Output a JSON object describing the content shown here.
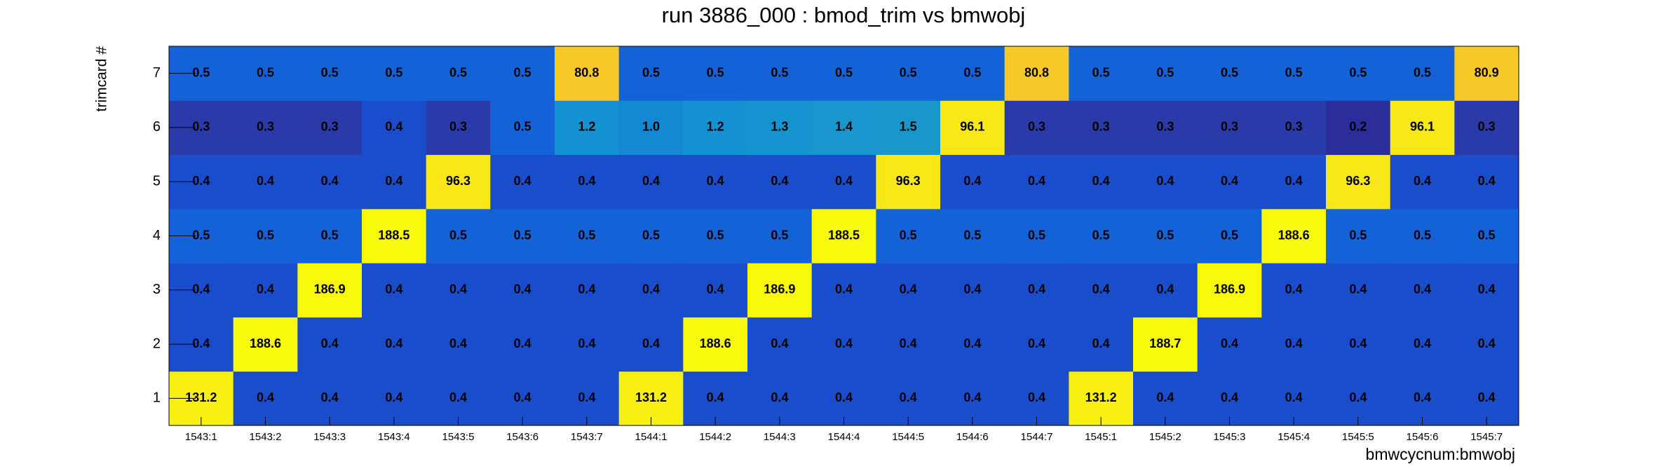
{
  "chart_data": {
    "type": "heatmap",
    "title": "run 3886_000 : bmod_trim vs bmwobj",
    "x_label": "bmwcycnum:bmwobj",
    "y_label": "trimcard #",
    "x_categories": [
      "1543:1",
      "1543:2",
      "1543:3",
      "1543:4",
      "1543:5",
      "1543:6",
      "1543:7",
      "1544:1",
      "1544:2",
      "1544:3",
      "1544:4",
      "1544:5",
      "1544:6",
      "1544:7",
      "1545:1",
      "1545:2",
      "1545:3",
      "1545:4",
      "1545:5",
      "1545:6",
      "1545:7"
    ],
    "y_categories": [
      "1",
      "2",
      "3",
      "4",
      "5",
      "6",
      "7"
    ],
    "values": [
      [
        131.2,
        0.4,
        0.4,
        0.4,
        0.4,
        0.4,
        0.4,
        131.2,
        0.4,
        0.4,
        0.4,
        0.4,
        0.4,
        0.4,
        131.2,
        0.4,
        0.4,
        0.4,
        0.4,
        0.4,
        0.4
      ],
      [
        0.4,
        188.6,
        0.4,
        0.4,
        0.4,
        0.4,
        0.4,
        0.4,
        188.6,
        0.4,
        0.4,
        0.4,
        0.4,
        0.4,
        0.4,
        188.7,
        0.4,
        0.4,
        0.4,
        0.4,
        0.4
      ],
      [
        0.4,
        0.4,
        186.9,
        0.4,
        0.4,
        0.4,
        0.4,
        0.4,
        0.4,
        186.9,
        0.4,
        0.4,
        0.4,
        0.4,
        0.4,
        0.4,
        186.9,
        0.4,
        0.4,
        0.4,
        0.4
      ],
      [
        0.5,
        0.5,
        0.5,
        188.5,
        0.5,
        0.5,
        0.5,
        0.5,
        0.5,
        0.5,
        188.5,
        0.5,
        0.5,
        0.5,
        0.5,
        0.5,
        0.5,
        188.6,
        0.5,
        0.5,
        0.5
      ],
      [
        0.4,
        0.4,
        0.4,
        0.4,
        96.3,
        0.4,
        0.4,
        0.4,
        0.4,
        0.4,
        0.4,
        96.3,
        0.4,
        0.4,
        0.4,
        0.4,
        0.4,
        0.4,
        96.3,
        0.4,
        0.4
      ],
      [
        0.3,
        0.3,
        0.3,
        0.4,
        0.3,
        0.5,
        1.2,
        1.0,
        1.2,
        1.3,
        1.4,
        1.5,
        96.1,
        0.3,
        0.3,
        0.3,
        0.3,
        0.3,
        0.2,
        96.1,
        0.3
      ],
      [
        0.5,
        0.5,
        0.5,
        0.5,
        0.5,
        0.5,
        80.8,
        0.5,
        0.5,
        0.5,
        0.5,
        0.5,
        0.5,
        80.8,
        0.5,
        0.5,
        0.5,
        0.5,
        0.5,
        0.5,
        80.9
      ]
    ],
    "value_labels": [
      [
        "131.2",
        "0.4",
        "0.4",
        "0.4",
        "0.4",
        "0.4",
        "0.4",
        "131.2",
        "0.4",
        "0.4",
        "0.4",
        "0.4",
        "0.4",
        "0.4",
        "131.2",
        "0.4",
        "0.4",
        "0.4",
        "0.4",
        "0.4",
        "0.4"
      ],
      [
        "0.4",
        "188.6",
        "0.4",
        "0.4",
        "0.4",
        "0.4",
        "0.4",
        "0.4",
        "188.6",
        "0.4",
        "0.4",
        "0.4",
        "0.4",
        "0.4",
        "0.4",
        "188.7",
        "0.4",
        "0.4",
        "0.4",
        "0.4",
        "0.4"
      ],
      [
        "0.4",
        "0.4",
        "186.9",
        "0.4",
        "0.4",
        "0.4",
        "0.4",
        "0.4",
        "0.4",
        "186.9",
        "0.4",
        "0.4",
        "0.4",
        "0.4",
        "0.4",
        "0.4",
        "186.9",
        "0.4",
        "0.4",
        "0.4",
        "0.4"
      ],
      [
        "0.5",
        "0.5",
        "0.5",
        "188.5",
        "0.5",
        "0.5",
        "0.5",
        "0.5",
        "0.5",
        "0.5",
        "188.5",
        "0.5",
        "0.5",
        "0.5",
        "0.5",
        "0.5",
        "0.5",
        "188.6",
        "0.5",
        "0.5",
        "0.5"
      ],
      [
        "0.4",
        "0.4",
        "0.4",
        "0.4",
        "96.3",
        "0.4",
        "0.4",
        "0.4",
        "0.4",
        "0.4",
        "0.4",
        "96.3",
        "0.4",
        "0.4",
        "0.4",
        "0.4",
        "0.4",
        "0.4",
        "96.3",
        "0.4",
        "0.4"
      ],
      [
        "0.3",
        "0.3",
        "0.3",
        "0.4",
        "0.3",
        "0.5",
        "1.2",
        "1.0",
        "1.2",
        "1.3",
        "1.4",
        "1.5",
        "96.1",
        "0.3",
        "0.3",
        "0.3",
        "0.3",
        "0.3",
        "0.2",
        "96.1",
        "0.3"
      ],
      [
        "0.5",
        "0.5",
        "0.5",
        "0.5",
        "0.5",
        "0.5",
        "80.8",
        "0.5",
        "0.5",
        "0.5",
        "0.5",
        "0.5",
        "0.5",
        "80.8",
        "0.5",
        "0.5",
        "0.5",
        "0.5",
        "0.5",
        "0.5",
        "80.9"
      ]
    ]
  }
}
